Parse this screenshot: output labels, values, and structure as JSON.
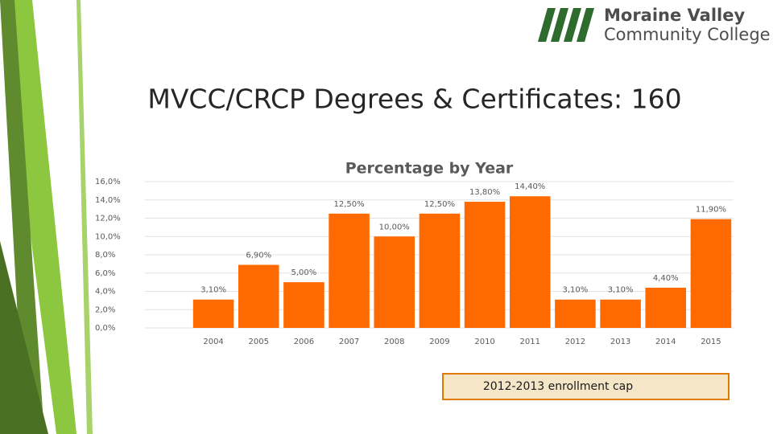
{
  "logo": {
    "line1": "Moraine Valley",
    "line2": "Community College"
  },
  "slide_title": "MVCC/CRCP Degrees & Certificates: 160",
  "chart_data": {
    "type": "bar",
    "title": "Percentage by Year",
    "categories": [
      "2004",
      "2005",
      "2006",
      "2007",
      "2008",
      "2009",
      "2010",
      "2011",
      "2012",
      "2013",
      "2014",
      "2015"
    ],
    "values": [
      3.1,
      6.9,
      5.0,
      12.5,
      10.0,
      12.5,
      13.8,
      14.4,
      3.1,
      3.1,
      4.4,
      11.9
    ],
    "value_labels": [
      "3,10%",
      "6,90%",
      "5,00%",
      "12,50%",
      "10,00%",
      "12,50%",
      "13,80%",
      "14,40%",
      "3,10%",
      "3,10%",
      "4,40%",
      "11,90%"
    ],
    "color": "#ff6a00",
    "ylim": [
      0,
      16
    ],
    "yticks": [
      {
        "value": 0,
        "label": "0,0%"
      },
      {
        "value": 2,
        "label": "2,0%"
      },
      {
        "value": 4,
        "label": "4,0%"
      },
      {
        "value": 6,
        "label": "6,0%"
      },
      {
        "value": 8,
        "label": "8,0%"
      },
      {
        "value": 10,
        "label": "10,0%"
      },
      {
        "value": 12,
        "label": "12,0%"
      },
      {
        "value": 14,
        "label": "14,0%"
      },
      {
        "value": 16,
        "label": "16,0%"
      }
    ],
    "grid": true,
    "annotation": "2012-2013 enrollment cap"
  }
}
